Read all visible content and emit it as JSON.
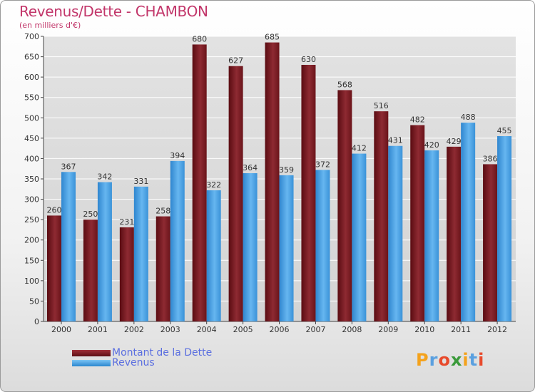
{
  "header": {
    "title": "Revenus/Dette - CHAMBON",
    "subtitle": "(en milliers d'€)"
  },
  "chart_data": {
    "type": "bar",
    "title": "Revenus/Dette - CHAMBON",
    "ylabel": "(en milliers d'€)",
    "xlabel": "",
    "ylim": [
      0,
      700
    ],
    "yticks": [
      0,
      50,
      100,
      150,
      200,
      250,
      300,
      350,
      400,
      450,
      500,
      550,
      600,
      650,
      700
    ],
    "grid": true,
    "legend_position": "bottom-left",
    "categories": [
      "2000",
      "2001",
      "2002",
      "2003",
      "2004",
      "2005",
      "2006",
      "2007",
      "2008",
      "2009",
      "2010",
      "2011",
      "2012"
    ],
    "series": [
      {
        "name": "Montant de la Dette",
        "color": "#7a1c22",
        "values": [
          260,
          250,
          231,
          258,
          680,
          627,
          685,
          630,
          568,
          516,
          482,
          429,
          386
        ]
      },
      {
        "name": "Revenus",
        "color": "#4aa3e6",
        "values": [
          367,
          342,
          331,
          394,
          322,
          364,
          359,
          372,
          412,
          431,
          420,
          488,
          455
        ]
      }
    ]
  },
  "legend": {
    "debt_label": "Montant de la Dette",
    "revenue_label": "Revenus"
  },
  "branding": {
    "logo_text": "Proxiti",
    "logo_colors": [
      "#f4a21c",
      "#5aa0e0",
      "#e84a2c",
      "#3a9a3a",
      "#f4a21c",
      "#5aa0e0",
      "#e84a2c"
    ]
  }
}
